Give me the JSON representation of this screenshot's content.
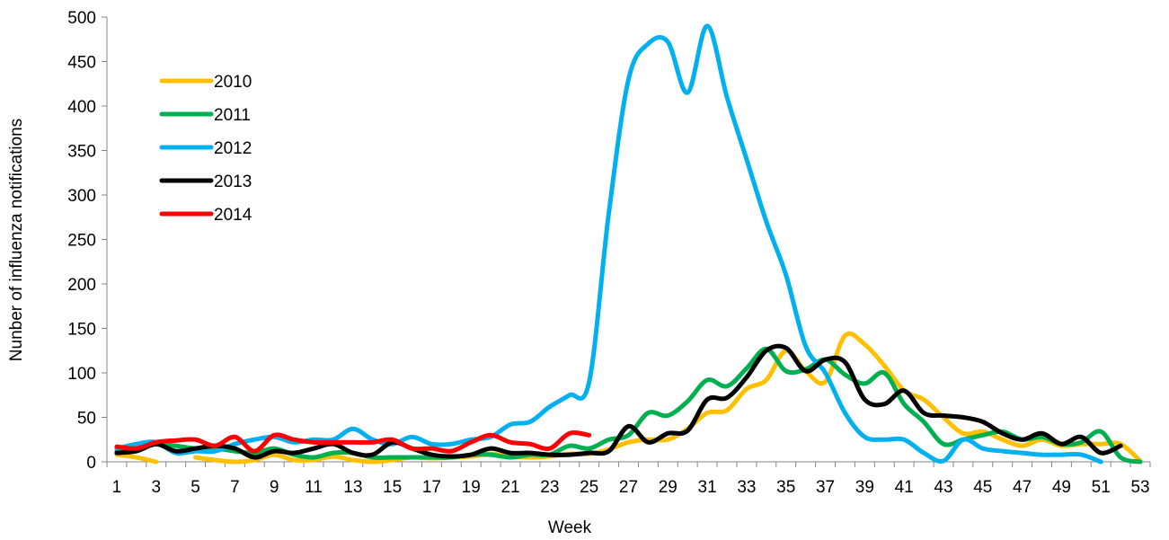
{
  "chart_data": {
    "type": "line",
    "title": "",
    "xlabel": "Week",
    "ylabel": "Nunber of influenza notifications",
    "xlim": [
      1,
      53
    ],
    "ylim": [
      0,
      500
    ],
    "y_ticks": [
      0,
      50,
      100,
      150,
      200,
      250,
      300,
      350,
      400,
      450,
      500
    ],
    "x_ticks": [
      1,
      3,
      5,
      7,
      9,
      11,
      13,
      15,
      17,
      19,
      21,
      23,
      25,
      27,
      29,
      31,
      33,
      35,
      37,
      39,
      41,
      43,
      45,
      47,
      49,
      51,
      53
    ],
    "grid": false,
    "legend": "top-left",
    "series": [
      {
        "name": "2010",
        "color": "#FFC000",
        "x": [
          1,
          2,
          3,
          null,
          5,
          6,
          7,
          8,
          9,
          10,
          11,
          12,
          13,
          14,
          15,
          16,
          17,
          18,
          19,
          20,
          21,
          22,
          23,
          24,
          25,
          26,
          27,
          28,
          29,
          30,
          31,
          32,
          33,
          34,
          35,
          36,
          37,
          38,
          39,
          40,
          41,
          42,
          43,
          44,
          45,
          46,
          47,
          48,
          49,
          50,
          51,
          52,
          53
        ],
        "values": [
          8,
          5,
          0,
          null,
          5,
          2,
          0,
          2,
          8,
          2,
          2,
          6,
          2,
          0,
          2,
          5,
          4,
          5,
          6,
          9,
          6,
          5,
          6,
          9,
          9,
          14,
          22,
          25,
          25,
          37,
          55,
          58,
          82,
          92,
          125,
          102,
          90,
          142,
          132,
          108,
          80,
          70,
          50,
          32,
          34,
          25,
          18,
          25,
          18,
          20,
          20,
          20,
          1
        ]
      },
      {
        "name": "2011",
        "color": "#00B050",
        "x": [
          1,
          2,
          3,
          4,
          5,
          6,
          7,
          8,
          9,
          10,
          11,
          12,
          13,
          14,
          15,
          16,
          17,
          18,
          19,
          20,
          21,
          22,
          23,
          24,
          25,
          26,
          27,
          28,
          29,
          30,
          31,
          32,
          33,
          34,
          35,
          36,
          37,
          38,
          39,
          40,
          41,
          42,
          43,
          44,
          45,
          46,
          47,
          48,
          49,
          50,
          51,
          52,
          53
        ],
        "values": [
          12,
          18,
          20,
          18,
          15,
          15,
          12,
          10,
          15,
          8,
          5,
          10,
          10,
          5,
          5,
          5,
          5,
          5,
          8,
          8,
          5,
          8,
          8,
          18,
          15,
          25,
          30,
          55,
          52,
          68,
          92,
          85,
          105,
          127,
          102,
          104,
          115,
          98,
          88,
          100,
          65,
          45,
          20,
          25,
          30,
          34,
          25,
          28,
          20,
          22,
          34,
          5,
          0
        ]
      },
      {
        "name": "2012",
        "color": "#00B0F0",
        "x": [
          1,
          2,
          3,
          4,
          5,
          6,
          7,
          8,
          9,
          10,
          11,
          12,
          13,
          14,
          15,
          16,
          17,
          18,
          19,
          20,
          21,
          22,
          23,
          24,
          25,
          26,
          27,
          28,
          29,
          30,
          31,
          32,
          33,
          34,
          35,
          36,
          37,
          38,
          39,
          40,
          41,
          42,
          43,
          44,
          45,
          46,
          47,
          48,
          49,
          50,
          51
        ],
        "values": [
          15,
          20,
          22,
          10,
          12,
          12,
          20,
          25,
          28,
          22,
          25,
          25,
          37,
          25,
          20,
          28,
          20,
          20,
          25,
          28,
          42,
          45,
          62,
          75,
          90,
          280,
          430,
          470,
          472,
          415,
          490,
          410,
          340,
          270,
          210,
          130,
          100,
          55,
          28,
          25,
          25,
          10,
          1,
          25,
          15,
          12,
          10,
          8,
          8,
          8,
          0
        ]
      },
      {
        "name": "2013",
        "color": "#000000",
        "x": [
          1,
          2,
          3,
          4,
          5,
          6,
          7,
          8,
          9,
          10,
          11,
          12,
          13,
          14,
          15,
          16,
          17,
          18,
          19,
          20,
          21,
          22,
          23,
          24,
          25,
          26,
          27,
          28,
          29,
          30,
          31,
          32,
          33,
          34,
          35,
          36,
          37,
          38,
          39,
          40,
          41,
          42,
          43,
          44,
          45,
          46,
          47,
          48,
          49,
          50,
          51,
          52
        ],
        "values": [
          10,
          12,
          20,
          12,
          15,
          18,
          15,
          5,
          12,
          10,
          15,
          20,
          10,
          8,
          22,
          15,
          8,
          6,
          8,
          15,
          10,
          10,
          8,
          8,
          10,
          12,
          40,
          22,
          32,
          35,
          70,
          72,
          95,
          125,
          128,
          102,
          115,
          112,
          70,
          65,
          80,
          55,
          52,
          50,
          45,
          32,
          25,
          32,
          20,
          28,
          10,
          18
        ]
      },
      {
        "name": "2014",
        "color": "#FF0000",
        "x": [
          1,
          2,
          3,
          4,
          5,
          6,
          7,
          8,
          9,
          10,
          11,
          12,
          13,
          14,
          15,
          16,
          17,
          18,
          19,
          20,
          21,
          22,
          23,
          24,
          25
        ],
        "values": [
          17,
          15,
          22,
          24,
          25,
          18,
          28,
          12,
          30,
          25,
          22,
          22,
          22,
          22,
          25,
          15,
          15,
          12,
          22,
          30,
          22,
          20,
          15,
          32,
          30
        ]
      }
    ]
  }
}
